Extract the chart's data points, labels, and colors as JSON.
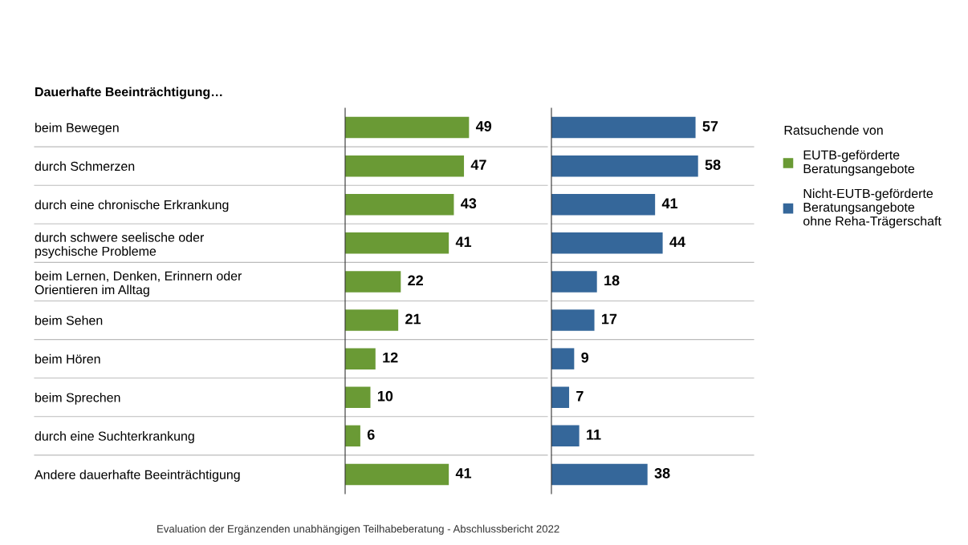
{
  "chart_data": [
    {
      "type": "bar",
      "orientation": "horizontal",
      "title": "Dauerhafte Beeinträchtigung…",
      "categories": [
        "beim Bewegen",
        "durch Schmerzen",
        "durch eine chronische Erkrankung",
        "durch schwere seelische oder\npsychische Probleme",
        "beim Lernen, Denken, Erinnern oder\nOrientieren im Alltag",
        "beim Sehen",
        "beim Hören",
        "beim Sprechen",
        "durch eine Suchterkrankung",
        "Andere dauerhafte Beeinträchtigung"
      ],
      "series": [
        {
          "name": "EUTB-geförderte\nBeratungsangebote",
          "color": "#6a9a35",
          "values": [
            49,
            47,
            43,
            41,
            22,
            21,
            12,
            10,
            6,
            41
          ]
        }
      ],
      "xlim": [
        0,
        80
      ],
      "tick_labels": "y",
      "data_labels": true,
      "grid": "y",
      "legend": "right",
      "annotations": [
        "Evaluation der Ergänzenden unabhängigen Teilhabeberatung - Abschlussbericht 2022"
      ]
    },
    {
      "type": "bar",
      "orientation": "horizontal",
      "categories": [
        null,
        null,
        null,
        null,
        null,
        null,
        null,
        null,
        null,
        null
      ],
      "series": [
        {
          "name": "Nicht-EUTB-geförderte\nBeratungsangebote\nohne Reha-Trägerschaft",
          "color": "#35679a",
          "values": [
            57,
            58,
            41,
            44,
            18,
            17,
            9,
            7,
            11,
            38
          ]
        }
      ],
      "xlim": [
        0,
        80
      ],
      "tick_labels": false,
      "data_labels": true,
      "grid": "y",
      "legend": "right",
      "legend_title": "Ratsuchende von"
    }
  ]
}
